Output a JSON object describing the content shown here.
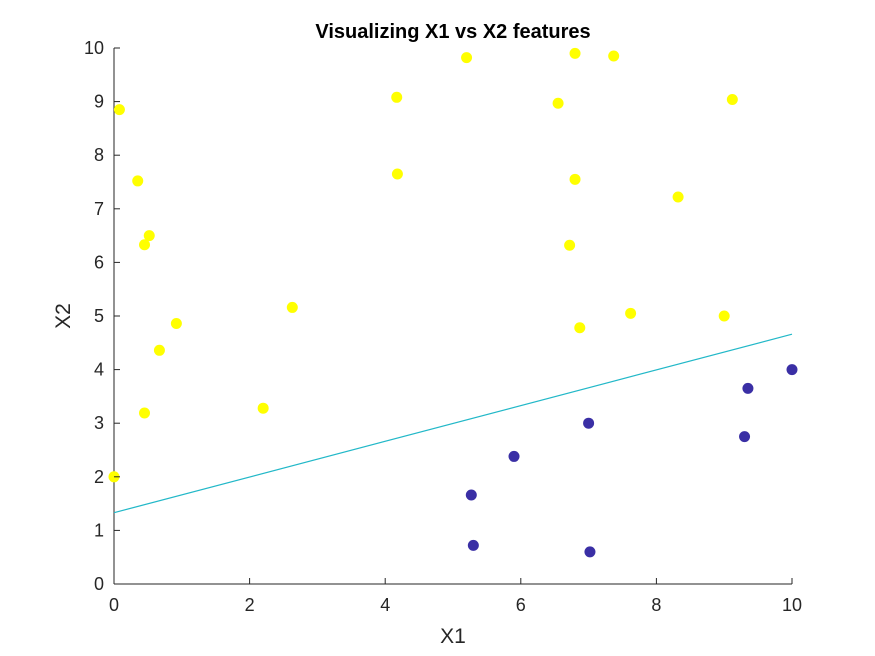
{
  "chart_data": {
    "type": "scatter",
    "title": "Visualizing X1 vs X2 features",
    "xlabel": "X1",
    "ylabel": "X2",
    "xlim": [
      0,
      10
    ],
    "ylim": [
      0,
      10
    ],
    "xticks": [
      "0",
      "2",
      "4",
      "6",
      "8",
      "10"
    ],
    "yticks": [
      "0",
      "1",
      "2",
      "3",
      "4",
      "5",
      "6",
      "7",
      "8",
      "9",
      "10"
    ],
    "grid": false,
    "legend": false,
    "series": [
      {
        "color": "#ffff00",
        "points": [
          [
            0.0,
            2.0
          ],
          [
            0.08,
            8.85
          ],
          [
            0.35,
            7.52
          ],
          [
            0.45,
            6.33
          ],
          [
            0.52,
            6.5
          ],
          [
            0.45,
            3.19
          ],
          [
            0.67,
            4.36
          ],
          [
            0.92,
            4.86
          ],
          [
            2.2,
            3.28
          ],
          [
            2.63,
            5.16
          ],
          [
            4.17,
            9.08
          ],
          [
            4.18,
            7.65
          ],
          [
            5.2,
            9.82
          ],
          [
            6.55,
            8.97
          ],
          [
            6.8,
            9.9
          ],
          [
            7.37,
            9.85
          ],
          [
            6.72,
            6.32
          ],
          [
            6.8,
            7.55
          ],
          [
            6.87,
            4.78
          ],
          [
            7.62,
            5.05
          ],
          [
            8.32,
            7.22
          ],
          [
            9.12,
            9.04
          ],
          [
            9.0,
            5.0
          ]
        ]
      },
      {
        "color": "#3a2fa5",
        "points": [
          [
            5.27,
            1.66
          ],
          [
            5.3,
            0.72
          ],
          [
            5.9,
            2.38
          ],
          [
            7.0,
            3.0
          ],
          [
            7.02,
            0.6
          ],
          [
            9.3,
            2.75
          ],
          [
            9.35,
            3.65
          ],
          [
            10.0,
            4.0
          ]
        ]
      }
    ],
    "line": {
      "color": "#22b8c8",
      "x": [
        0,
        10
      ],
      "y": [
        1.33,
        4.66
      ]
    }
  }
}
